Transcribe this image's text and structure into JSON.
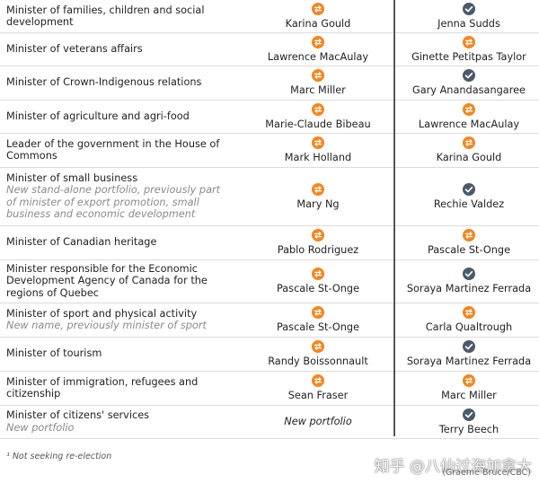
{
  "colors": {
    "swap": "#f5861f",
    "keep": "#4a5a6a",
    "divider": "#555555"
  },
  "rows": [
    {
      "title": "Minister of families, children and social development",
      "note": "",
      "previous": "Karina Gould",
      "previous_icon": "swap-icon",
      "new": "Jenna Sudds",
      "new_icon": "check-icon"
    },
    {
      "title": "Minister of veterans affairs",
      "note": "",
      "previous": "Lawrence MacAulay",
      "previous_icon": "swap-icon",
      "new": "Ginette Petitpas Taylor",
      "new_icon": "swap-icon"
    },
    {
      "title": "Minister of Crown-Indigenous relations",
      "note": "",
      "previous": "Marc Miller",
      "previous_icon": "swap-icon",
      "new": "Gary Anandasangaree",
      "new_icon": "check-icon"
    },
    {
      "title": "Minister of agriculture and agri-food",
      "note": "",
      "previous": "Marie-Claude Bibeau",
      "previous_icon": "swap-icon",
      "new": "Lawrence MacAulay",
      "new_icon": "swap-icon"
    },
    {
      "title": "Leader of the government in the House of Commons",
      "note": "",
      "previous": "Mark Holland",
      "previous_icon": "swap-icon",
      "new": "Karina Gould",
      "new_icon": "swap-icon"
    },
    {
      "title": "Minister of small business",
      "note": "New stand-alone portfolio, previously part of minister of export promotion, small business and economic development",
      "previous": "Mary Ng",
      "previous_icon": "swap-icon",
      "new": "Rechie Valdez",
      "new_icon": "check-icon"
    },
    {
      "title": "Minister of Canadian heritage",
      "note": "",
      "previous": "Pablo Rodriguez",
      "previous_icon": "swap-icon",
      "new": "Pascale St-Onge",
      "new_icon": "swap-icon"
    },
    {
      "title": "Minister responsible for the Economic Development Agency of Canada for the regions of Quebec",
      "note": "",
      "previous": "Pascale St-Onge",
      "previous_icon": "swap-icon",
      "new": "Soraya Martinez Ferrada",
      "new_icon": "check-icon"
    },
    {
      "title": "Minister of sport and physical activity",
      "note": "New name, previously minister of sport",
      "previous": "Pascale St-Onge",
      "previous_icon": "swap-icon",
      "new": "Carla Qualtrough",
      "new_icon": "swap-icon"
    },
    {
      "title": "Minister of tourism",
      "note": "",
      "previous": "Randy Boissonnault",
      "previous_icon": "swap-icon",
      "new": "Soraya Martinez Ferrada",
      "new_icon": "check-icon"
    },
    {
      "title": "Minister of immigration, refugees and citizenship",
      "note": "",
      "previous": "Sean Fraser",
      "previous_icon": "swap-icon",
      "new": "Marc Miller",
      "new_icon": "swap-icon"
    },
    {
      "title": "Minister of citizens' services",
      "note": "New portfolio",
      "previous": "New portfolio",
      "previous_icon": "",
      "new": "Terry Beech",
      "new_icon": "check-icon"
    }
  ],
  "footnote": "¹ Not seeking re-election",
  "watermark": "知乎 @八仙过海加拿大",
  "credit": "(Graeme Bruce/CBC)"
}
